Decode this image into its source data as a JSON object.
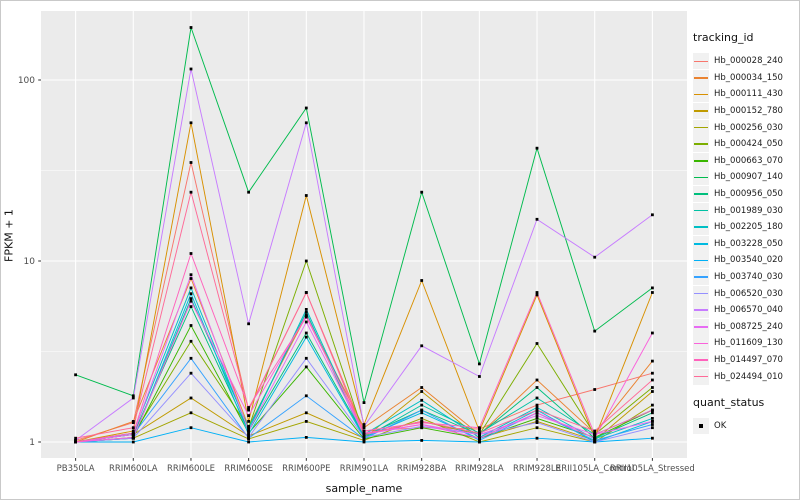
{
  "chart_data": {
    "type": "line",
    "xlabel": "sample_name",
    "ylabel": "FPKM + 1",
    "y_scale": "log10",
    "y_ticks": [
      1,
      10,
      100
    ],
    "y_minor_ticks": [
      3.162,
      31.62
    ],
    "ylim_displayed": [
      0.95,
      240
    ],
    "grid": "on",
    "legend_position": "right",
    "legend_title": "tracking_id",
    "point_legend": {
      "title": "quant_status",
      "label": "OK"
    },
    "style": {
      "panel_bg": "#ebebeb",
      "grid_color": "#ffffff",
      "axis_text_color": "#4d4d4d",
      "tick_color": "#333333",
      "point_color": "#000000",
      "legend_key_bg": "#f1f1f1"
    },
    "categories": [
      "PB350LA",
      "RRIM600LA",
      "RRIM600LE",
      "RRIM600SE",
      "RRIM600PE",
      "RRIM901LA",
      "RRIM928BA",
      "RRIM928LA",
      "RRIM928LE",
      "RRII105LA_Control",
      "RRII105LA_Stressed"
    ],
    "series": [
      {
        "name": "Hb_000028_240",
        "color": "#F8766D",
        "values": [
          1.02,
          1.28,
          35,
          1.5,
          6.7,
          1.15,
          1.2,
          1.18,
          1.6,
          1.95,
          2.4
        ]
      },
      {
        "name": "Hb_000034_150",
        "color": "#EA8331",
        "values": [
          1.0,
          1.3,
          8.0,
          1.22,
          5.0,
          1.2,
          2.0,
          1.1,
          2.2,
          1.12,
          2.8
        ]
      },
      {
        "name": "Hb_000111_430",
        "color": "#D89000",
        "values": [
          1.0,
          1.15,
          58,
          1.3,
          23,
          1.25,
          7.8,
          1.15,
          6.5,
          1.05,
          6.7
        ]
      },
      {
        "name": "Hb_000152_780",
        "color": "#C09B00",
        "values": [
          1.0,
          1.1,
          1.75,
          1.08,
          1.45,
          1.05,
          1.9,
          1.05,
          1.3,
          1.02,
          1.9
        ]
      },
      {
        "name": "Hb_000256_030",
        "color": "#A3A500",
        "values": [
          1.0,
          1.05,
          1.45,
          1.04,
          1.3,
          1.02,
          1.35,
          1.0,
          1.2,
          1.0,
          1.6
        ]
      },
      {
        "name": "Hb_000424_050",
        "color": "#7CAE00",
        "values": [
          1.0,
          1.1,
          3.6,
          1.2,
          10,
          1.1,
          1.3,
          1.1,
          3.5,
          1.1,
          2.0
        ]
      },
      {
        "name": "Hb_000663_070",
        "color": "#39B600",
        "values": [
          1.0,
          1.06,
          4.4,
          1.12,
          2.6,
          1.04,
          1.2,
          1.05,
          1.35,
          1.06,
          1.5
        ]
      },
      {
        "name": "Hb_000907_140",
        "color": "#00BB4E",
        "values": [
          2.35,
          1.8,
          195,
          24,
          70,
          1.65,
          24,
          2.7,
          42,
          4.1,
          7.1
        ]
      },
      {
        "name": "Hb_000956_050",
        "color": "#00BF7D",
        "values": [
          1.0,
          1.1,
          5.6,
          1.15,
          4.0,
          1.08,
          1.5,
          1.1,
          2.0,
          1.05,
          1.45
        ]
      },
      {
        "name": "Hb_001989_030",
        "color": "#00C1A3",
        "values": [
          1.0,
          1.05,
          6.2,
          1.2,
          5.2,
          1.05,
          1.6,
          1.12,
          1.75,
          1.1,
          1.5
        ]
      },
      {
        "name": "Hb_002205_180",
        "color": "#00BFC4",
        "values": [
          1.0,
          1.12,
          7.1,
          1.16,
          5.4,
          1.1,
          1.7,
          1.06,
          1.55,
          1.04,
          1.35
        ]
      },
      {
        "name": "Hb_003228_050",
        "color": "#00BAE0",
        "values": [
          1.0,
          1.05,
          6.6,
          1.1,
          3.8,
          1.06,
          1.45,
          1.04,
          1.5,
          1.0,
          1.3
        ]
      },
      {
        "name": "Hb_003540_020",
        "color": "#00B0F6",
        "values": [
          1.0,
          1.0,
          1.2,
          1.0,
          1.06,
          1.0,
          1.02,
          1.0,
          1.05,
          1.0,
          1.05
        ]
      },
      {
        "name": "Hb_003740_030",
        "color": "#35A2FF",
        "values": [
          1.0,
          1.1,
          2.9,
          1.05,
          1.8,
          1.04,
          1.5,
          1.02,
          1.45,
          1.02,
          1.25
        ]
      },
      {
        "name": "Hb_006520_030",
        "color": "#9590FF",
        "values": [
          1.0,
          1.05,
          2.4,
          1.06,
          2.9,
          1.06,
          1.22,
          1.1,
          1.28,
          1.0,
          1.2
        ]
      },
      {
        "name": "Hb_006570_040",
        "color": "#C77CFF",
        "values": [
          1.02,
          1.75,
          115,
          4.5,
          58,
          1.22,
          3.4,
          2.3,
          17,
          10.5,
          18
        ]
      },
      {
        "name": "Hb_008725_240",
        "color": "#E76BF3",
        "values": [
          1.0,
          1.1,
          8.4,
          1.15,
          4.6,
          1.1,
          1.25,
          1.1,
          1.4,
          1.1,
          1.3
        ]
      },
      {
        "name": "Hb_011609_130",
        "color": "#FA62DB",
        "values": [
          1.0,
          1.06,
          6.0,
          1.4,
          5.0,
          1.12,
          1.25,
          1.05,
          1.45,
          1.05,
          4.0
        ]
      },
      {
        "name": "Hb_014497_070",
        "color": "#FF62BC",
        "values": [
          1.0,
          1.12,
          11,
          1.55,
          4.9,
          1.15,
          1.28,
          1.2,
          6.7,
          1.1,
          1.5
        ]
      },
      {
        "name": "Hb_024494_010",
        "color": "#FF6A98",
        "values": [
          1.05,
          1.2,
          24,
          1.52,
          6.7,
          1.1,
          1.3,
          1.12,
          1.5,
          1.15,
          2.2
        ]
      }
    ]
  }
}
